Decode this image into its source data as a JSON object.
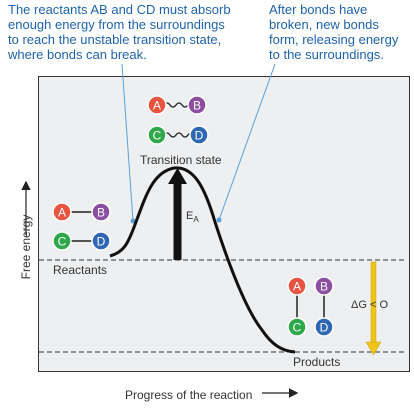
{
  "captions": {
    "left_lines": [
      "The reactants AB and CD must absorb",
      "enough energy from the surroundings",
      "to reach the unstable transition state,",
      "where bonds can break."
    ],
    "right_lines": [
      "After bonds have",
      "broken, new bonds",
      "form, releasing energy",
      "to the surroundings."
    ]
  },
  "axes": {
    "y_label": "Free energy",
    "x_label": "Progress of the reaction"
  },
  "states": {
    "reactants": "Reactants",
    "transition": "Transition state",
    "products": "Products"
  },
  "energy": {
    "ea_main": "E",
    "ea_sub": "A",
    "dg": "ΔG < O"
  },
  "atoms": {
    "A": {
      "label": "A",
      "color": "#e8543f"
    },
    "B": {
      "label": "B",
      "color": "#8b4ea0"
    },
    "C": {
      "label": "C",
      "color": "#2ea84a"
    },
    "D": {
      "label": "D",
      "color": "#2e67b3"
    }
  },
  "colors": {
    "caption": "#1f63ad",
    "plot_bg": "#eeeff0",
    "delta_g_arrow": "#f0c419"
  }
}
